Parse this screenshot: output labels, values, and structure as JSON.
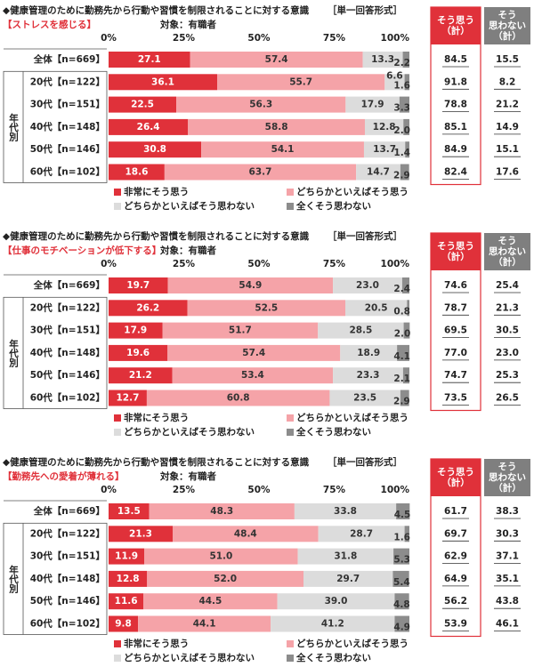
{
  "chart_data": [
    {
      "type": "bar",
      "orientation": "horizontal",
      "stacked": true,
      "title": "◆健康管理のために勤務先から行動や習慣を制限されることに対する意識",
      "answer_format": "［単一回答形式］",
      "subtitle": "【ストレスを感じる】",
      "note": "対象：有職者",
      "group_label": "年代別",
      "categories": [
        "全体【n=669】",
        "20代【n=122】",
        "30代【n=151】",
        "40代【n=148】",
        "50代【n=146】",
        "60代【n=102】"
      ],
      "xlim": [
        0,
        100
      ],
      "xticks": [
        {
          "value": 0,
          "label": "0%"
        },
        {
          "value": 25,
          "label": "25%"
        },
        {
          "value": 50,
          "label": "50%"
        },
        {
          "value": 75,
          "label": "75%"
        },
        {
          "value": 100,
          "label": "100%"
        }
      ],
      "grid": false,
      "series": [
        {
          "name": "非常にそう思う",
          "color": "#e0313a",
          "values": [
            27.1,
            36.1,
            22.5,
            26.4,
            30.8,
            18.6
          ],
          "value_labels": [
            "27.1",
            "36.1",
            "22.5",
            "26.4",
            "30.8",
            "18.6"
          ]
        },
        {
          "name": "どちらかといえばそう思う",
          "color": "#f5a3a8",
          "values": [
            57.4,
            55.7,
            56.3,
            58.8,
            54.1,
            63.7
          ],
          "value_labels": [
            "57.4",
            "55.7",
            "56.3",
            "58.8",
            "54.1",
            "63.7"
          ]
        },
        {
          "name": "どちらかといえばそう思わない",
          "color": "#dcdcdc",
          "values": [
            13.3,
            6.6,
            17.9,
            12.8,
            13.7,
            14.7
          ],
          "value_labels": [
            "13.3",
            "6.6",
            "17.9",
            "12.8",
            "13.7",
            "14.7"
          ]
        },
        {
          "name": "全くそう思わない",
          "color": "#8c8c8c",
          "values": [
            2.2,
            1.6,
            3.3,
            2.0,
            1.4,
            2.9
          ],
          "value_labels": [
            "2.2",
            "1.6",
            "3.3",
            "2.0",
            "1.4",
            "2.9"
          ]
        }
      ],
      "totals": [
        {
          "label": [
            "そう思う",
            "（計）"
          ],
          "color": "#e0313a",
          "values": [
            84.5,
            91.8,
            78.8,
            85.1,
            84.9,
            82.4
          ],
          "value_labels": [
            "84.5",
            "91.8",
            "78.8",
            "85.1",
            "84.9",
            "82.4"
          ]
        },
        {
          "label": [
            "そう",
            "思わない",
            "（計）"
          ],
          "color": "#7f7f7f",
          "values": [
            15.5,
            8.2,
            21.2,
            14.9,
            15.1,
            17.6
          ],
          "value_labels": [
            "15.5",
            "8.2",
            "21.2",
            "14.9",
            "15.1",
            "17.6"
          ]
        }
      ]
    },
    {
      "type": "bar",
      "orientation": "horizontal",
      "stacked": true,
      "title": "◆健康管理のために勤務先から行動や習慣を制限されることに対する意識",
      "answer_format": "［単一回答形式］",
      "subtitle": "【仕事のモチベーションが低下する】",
      "note": "対象：有職者",
      "group_label": "年代別",
      "categories": [
        "全体【n=669】",
        "20代【n=122】",
        "30代【n=151】",
        "40代【n=148】",
        "50代【n=146】",
        "60代【n=102】"
      ],
      "xlim": [
        0,
        100
      ],
      "xticks": [
        {
          "value": 0,
          "label": "0%"
        },
        {
          "value": 25,
          "label": "25%"
        },
        {
          "value": 50,
          "label": "50%"
        },
        {
          "value": 75,
          "label": "75%"
        },
        {
          "value": 100,
          "label": "100%"
        }
      ],
      "grid": false,
      "series": [
        {
          "name": "非常にそう思う",
          "color": "#e0313a",
          "values": [
            19.7,
            26.2,
            17.9,
            19.6,
            21.2,
            12.7
          ],
          "value_labels": [
            "19.7",
            "26.2",
            "17.9",
            "19.6",
            "21.2",
            "12.7"
          ]
        },
        {
          "name": "どちらかといえばそう思う",
          "color": "#f5a3a8",
          "values": [
            54.9,
            52.5,
            51.7,
            57.4,
            53.4,
            60.8
          ],
          "value_labels": [
            "54.9",
            "52.5",
            "51.7",
            "57.4",
            "53.4",
            "60.8"
          ]
        },
        {
          "name": "どちらかといえばそう思わない",
          "color": "#dcdcdc",
          "values": [
            23.0,
            20.5,
            28.5,
            18.9,
            23.3,
            23.5
          ],
          "value_labels": [
            "23.0",
            "20.5",
            "28.5",
            "18.9",
            "23.3",
            "23.5"
          ]
        },
        {
          "name": "全くそう思わない",
          "color": "#8c8c8c",
          "values": [
            2.4,
            0.8,
            2.0,
            4.1,
            2.1,
            2.9
          ],
          "value_labels": [
            "2.4",
            "0.8",
            "2.0",
            "4.1",
            "2.1",
            "2.9"
          ]
        }
      ],
      "totals": [
        {
          "label": [
            "そう思う",
            "（計）"
          ],
          "color": "#e0313a",
          "values": [
            74.6,
            78.7,
            69.5,
            77.0,
            74.7,
            73.5
          ],
          "value_labels": [
            "74.6",
            "78.7",
            "69.5",
            "77.0",
            "74.7",
            "73.5"
          ]
        },
        {
          "label": [
            "そう",
            "思わない",
            "（計）"
          ],
          "color": "#7f7f7f",
          "values": [
            25.4,
            21.3,
            30.5,
            23.0,
            25.3,
            26.5
          ],
          "value_labels": [
            "25.4",
            "21.3",
            "30.5",
            "23.0",
            "25.3",
            "26.5"
          ]
        }
      ]
    },
    {
      "type": "bar",
      "orientation": "horizontal",
      "stacked": true,
      "title": "◆健康管理のために勤務先から行動や習慣を制限されることに対する意識",
      "answer_format": "［単一回答形式］",
      "subtitle": "【勤務先への愛着が薄れる】",
      "note": "対象：有職者",
      "group_label": "年代別",
      "categories": [
        "全体【n=669】",
        "20代【n=122】",
        "30代【n=151】",
        "40代【n=148】",
        "50代【n=146】",
        "60代【n=102】"
      ],
      "xlim": [
        0,
        100
      ],
      "xticks": [
        {
          "value": 0,
          "label": "0%"
        },
        {
          "value": 25,
          "label": "25%"
        },
        {
          "value": 50,
          "label": "50%"
        },
        {
          "value": 75,
          "label": "75%"
        },
        {
          "value": 100,
          "label": "100%"
        }
      ],
      "grid": false,
      "series": [
        {
          "name": "非常にそう思う",
          "color": "#e0313a",
          "values": [
            13.5,
            21.3,
            11.9,
            12.8,
            11.6,
            9.8
          ],
          "value_labels": [
            "13.5",
            "21.3",
            "11.9",
            "12.8",
            "11.6",
            "9.8"
          ]
        },
        {
          "name": "どちらかといえばそう思う",
          "color": "#f5a3a8",
          "values": [
            48.3,
            48.4,
            51.0,
            52.0,
            44.5,
            44.1
          ],
          "value_labels": [
            "48.3",
            "48.4",
            "51.0",
            "52.0",
            "44.5",
            "44.1"
          ]
        },
        {
          "name": "どちらかといえばそう思わない",
          "color": "#dcdcdc",
          "values": [
            33.8,
            28.7,
            31.8,
            29.7,
            39.0,
            41.2
          ],
          "value_labels": [
            "33.8",
            "28.7",
            "31.8",
            "29.7",
            "39.0",
            "41.2"
          ]
        },
        {
          "name": "全くそう思わない",
          "color": "#8c8c8c",
          "values": [
            4.5,
            1.6,
            5.3,
            5.4,
            4.8,
            4.9
          ],
          "value_labels": [
            "4.5",
            "1.6",
            "5.3",
            "5.4",
            "4.8",
            "4.9"
          ]
        }
      ],
      "totals": [
        {
          "label": [
            "そう思う",
            "（計）"
          ],
          "color": "#e0313a",
          "values": [
            61.7,
            69.7,
            62.9,
            64.9,
            56.2,
            53.9
          ],
          "value_labels": [
            "61.7",
            "69.7",
            "62.9",
            "64.9",
            "56.2",
            "53.9"
          ]
        },
        {
          "label": [
            "そう",
            "思わない",
            "（計）"
          ],
          "color": "#7f7f7f",
          "values": [
            38.3,
            30.3,
            37.1,
            35.1,
            43.8,
            46.1
          ],
          "value_labels": [
            "38.3",
            "30.3",
            "37.1",
            "35.1",
            "43.8",
            "46.1"
          ]
        }
      ]
    }
  ]
}
